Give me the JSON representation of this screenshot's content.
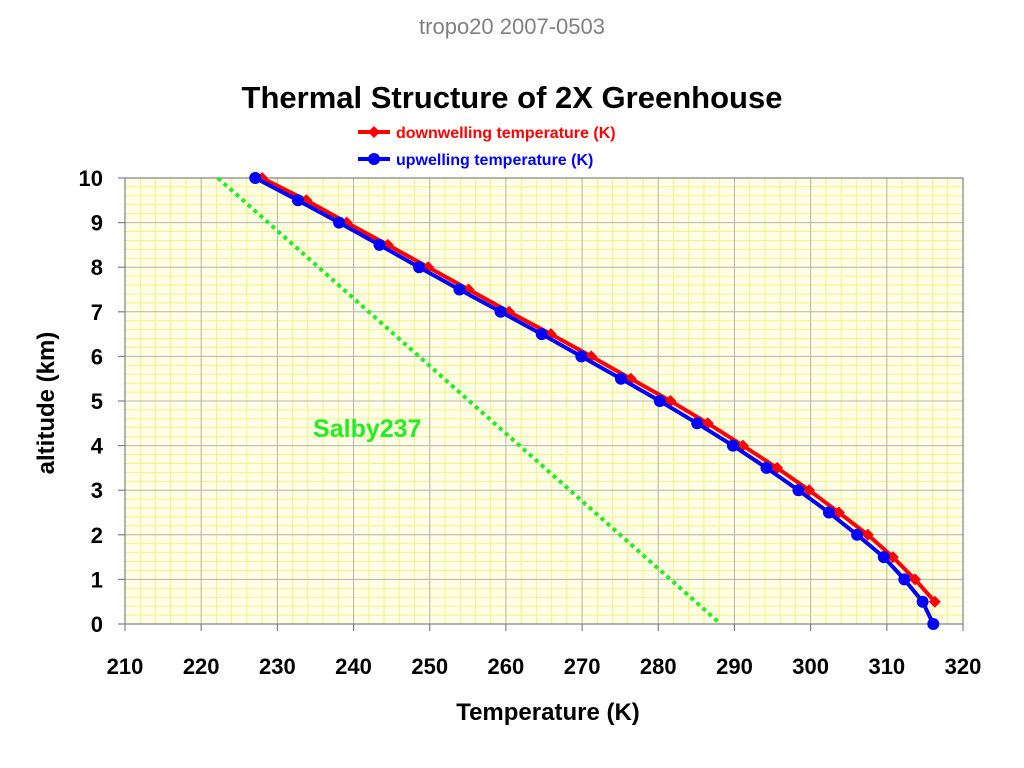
{
  "header": "tropo20 2007-0503",
  "chart_data": {
    "type": "line",
    "title": "Thermal Structure of 2X Greenhouse",
    "xlabel": "Temperature (K)",
    "ylabel": "altitude (km)",
    "xlim": [
      210,
      320
    ],
    "ylim": [
      0,
      10
    ],
    "x_ticks": [
      210,
      220,
      230,
      240,
      250,
      260,
      270,
      280,
      290,
      300,
      310,
      320
    ],
    "y_ticks": [
      0,
      1,
      2,
      3,
      4,
      5,
      6,
      7,
      8,
      9,
      10
    ],
    "grid": true,
    "minor_grid": true,
    "legend_position": "top-center",
    "series": [
      {
        "name": "downwelling temperature (K)",
        "color": "#ff0000",
        "marker": "diamond",
        "points": [
          [
            228.0,
            10.0
          ],
          [
            233.8,
            9.5
          ],
          [
            239.1,
            9.0
          ],
          [
            244.5,
            8.5
          ],
          [
            249.8,
            8.0
          ],
          [
            255.1,
            7.5
          ],
          [
            260.4,
            7.0
          ],
          [
            265.9,
            6.5
          ],
          [
            271.2,
            6.0
          ],
          [
            276.4,
            5.5
          ],
          [
            281.6,
            5.0
          ],
          [
            286.5,
            4.5
          ],
          [
            291.1,
            4.0
          ],
          [
            295.6,
            3.5
          ],
          [
            299.8,
            3.0
          ],
          [
            303.7,
            2.5
          ],
          [
            307.5,
            2.0
          ],
          [
            310.8,
            1.5
          ],
          [
            313.7,
            1.0
          ],
          [
            316.3,
            0.5
          ]
        ]
      },
      {
        "name": "upwelling temperature (K)",
        "color": "#0000ff",
        "marker": "circle",
        "points": [
          [
            227.1,
            10.0
          ],
          [
            232.7,
            9.5
          ],
          [
            238.1,
            9.0
          ],
          [
            243.4,
            8.5
          ],
          [
            248.6,
            8.0
          ],
          [
            253.9,
            7.5
          ],
          [
            259.3,
            7.0
          ],
          [
            264.7,
            6.5
          ],
          [
            269.9,
            6.0
          ],
          [
            275.1,
            5.5
          ],
          [
            280.2,
            5.0
          ],
          [
            285.1,
            4.5
          ],
          [
            289.8,
            4.0
          ],
          [
            294.2,
            3.5
          ],
          [
            298.4,
            3.0
          ],
          [
            302.4,
            2.5
          ],
          [
            306.1,
            2.0
          ],
          [
            309.6,
            1.5
          ],
          [
            312.3,
            1.0
          ],
          [
            314.7,
            0.5
          ],
          [
            316.1,
            0.0
          ]
        ]
      },
      {
        "annotation": "Salby237",
        "color": "#22ee22",
        "style": "dotted",
        "points": [
          [
            222.2,
            10.0
          ],
          [
            288.2,
            0.0
          ]
        ],
        "label_anchor": [
          241.8,
          4.4
        ]
      }
    ]
  }
}
